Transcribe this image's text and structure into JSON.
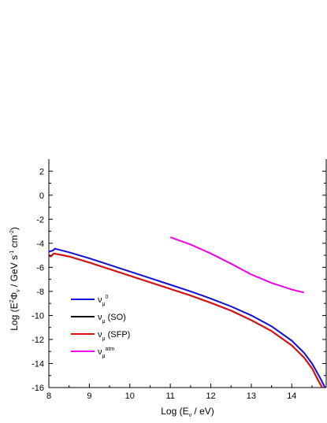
{
  "chart_data": {
    "type": "line",
    "title": "",
    "xlabel": {
      "prefix": "Log (E",
      "sub": "ν",
      "suffix": " / eV)"
    },
    "ylabel": {
      "p1": "Log (E",
      "sup1": "2",
      "p2": "Φ",
      "sub1": "ν",
      "p3": " / GeV s",
      "sup2": "-1",
      "p4": " cm",
      "sup3": "-2",
      "p5": ")"
    },
    "xlim": [
      8,
      14.85
    ],
    "ylim": [
      -16,
      3
    ],
    "xticks": [
      8,
      9,
      10,
      11,
      12,
      13,
      14
    ],
    "xtick_labels": [
      "8",
      "9",
      "10",
      "11",
      "12",
      "13",
      "14"
    ],
    "yticks": [
      2,
      0,
      -2,
      -4,
      -6,
      -8,
      -10,
      -12,
      -14,
      -16
    ],
    "ytick_labels": [
      "2",
      "0",
      "-2",
      "-4",
      "-6",
      "-8",
      "-10",
      "-12",
      "-14",
      "-16"
    ],
    "legend_position": "bottom-left",
    "series": [
      {
        "key": "nu0",
        "color": "#1010d8",
        "legend": {
          "sym": "ν",
          "sub": "μ",
          "sup": "0",
          "text": ""
        },
        "points": [
          [
            8.0,
            -4.7
          ],
          [
            8.1,
            -4.6
          ],
          [
            8.15,
            -4.45
          ],
          [
            8.5,
            -4.75
          ],
          [
            9.0,
            -5.25
          ],
          [
            9.5,
            -5.8
          ],
          [
            10.0,
            -6.35
          ],
          [
            10.5,
            -6.9
          ],
          [
            11.0,
            -7.45
          ],
          [
            11.5,
            -8.0
          ],
          [
            12.0,
            -8.6
          ],
          [
            12.5,
            -9.25
          ],
          [
            13.0,
            -10.0
          ],
          [
            13.5,
            -10.9
          ],
          [
            14.0,
            -12.1
          ],
          [
            14.3,
            -13.1
          ],
          [
            14.5,
            -14.0
          ],
          [
            14.7,
            -15.2
          ],
          [
            14.82,
            -16.0
          ]
        ]
      },
      {
        "key": "nuSO",
        "color": "#000000",
        "legend": {
          "sym": "ν",
          "sub": "μ",
          "sup": "",
          "text": " (SO)"
        },
        "points": [
          [
            8.0,
            -5.0
          ],
          [
            8.05,
            -5.1
          ],
          [
            8.12,
            -4.85
          ],
          [
            8.5,
            -5.1
          ],
          [
            9.0,
            -5.6
          ],
          [
            9.5,
            -6.15
          ],
          [
            10.0,
            -6.7
          ],
          [
            10.5,
            -7.25
          ],
          [
            11.0,
            -7.8
          ],
          [
            11.5,
            -8.35
          ],
          [
            12.0,
            -8.95
          ],
          [
            12.5,
            -9.6
          ],
          [
            13.0,
            -10.4
          ],
          [
            13.5,
            -11.3
          ],
          [
            14.0,
            -12.5
          ],
          [
            14.3,
            -13.5
          ],
          [
            14.5,
            -14.4
          ],
          [
            14.65,
            -15.4
          ],
          [
            14.75,
            -16.0
          ]
        ]
      },
      {
        "key": "nuSFP",
        "color": "#e01010",
        "legend": {
          "sym": "ν",
          "sub": "μ",
          "sup": "",
          "text": " (SFP)"
        },
        "points": [
          [
            8.0,
            -5.0
          ],
          [
            8.05,
            -5.1
          ],
          [
            8.12,
            -4.85
          ],
          [
            8.5,
            -5.1
          ],
          [
            9.0,
            -5.6
          ],
          [
            9.5,
            -6.15
          ],
          [
            10.0,
            -6.7
          ],
          [
            10.5,
            -7.25
          ],
          [
            11.0,
            -7.8
          ],
          [
            11.5,
            -8.35
          ],
          [
            12.0,
            -8.95
          ],
          [
            12.5,
            -9.6
          ],
          [
            13.0,
            -10.4
          ],
          [
            13.5,
            -11.3
          ],
          [
            14.0,
            -12.5
          ],
          [
            14.3,
            -13.5
          ],
          [
            14.5,
            -14.4
          ],
          [
            14.65,
            -15.4
          ],
          [
            14.75,
            -16.0
          ]
        ]
      },
      {
        "key": "nuatm",
        "color": "#f000f0",
        "legend": {
          "sym": "ν",
          "sub": "μ",
          "sup": "atm",
          "text": ""
        },
        "points": [
          [
            11.0,
            -3.5
          ],
          [
            11.5,
            -4.1
          ],
          [
            12.0,
            -4.85
          ],
          [
            12.5,
            -5.7
          ],
          [
            13.0,
            -6.6
          ],
          [
            13.5,
            -7.3
          ],
          [
            14.0,
            -7.85
          ],
          [
            14.3,
            -8.1
          ]
        ]
      }
    ]
  }
}
